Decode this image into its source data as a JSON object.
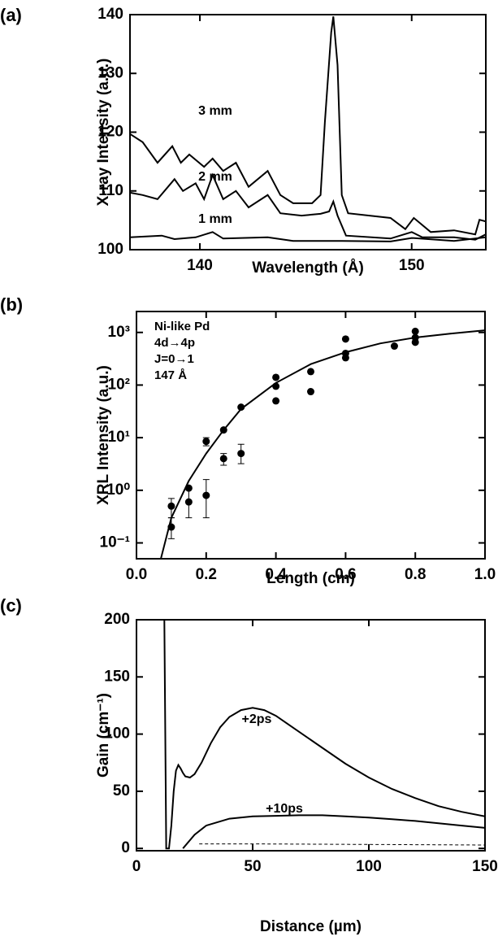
{
  "chart_data": [
    {
      "type": "line",
      "panel_label": "(a)",
      "xlabel": "Wavelength  (Å)",
      "ylabel": "X-ray Intensity (a.u.)",
      "xlim": [
        136.7,
        153.5
      ],
      "ylim": [
        100,
        140
      ],
      "xticks": [
        140,
        150
      ],
      "yticks": [
        100,
        110,
        120,
        130,
        140
      ],
      "series": [
        {
          "name": "3 mm",
          "color": "#000000",
          "x": [
            136.7,
            137.3,
            138.0,
            138.7,
            139.1,
            139.5,
            140.2,
            140.6,
            141.1,
            141.7,
            142.3,
            143.2,
            143.8,
            144.4,
            145.3,
            145.7,
            145.9,
            146.2,
            146.3,
            146.5,
            146.7,
            147.0,
            149.0,
            149.7,
            150.1,
            150.9,
            152.0,
            153.0,
            153.2,
            153.5
          ],
          "values": [
            119.7,
            118.3,
            114.8,
            117.6,
            114.8,
            116.2,
            114.1,
            115.5,
            113.4,
            114.8,
            110.7,
            113.4,
            109.3,
            107.9,
            107.9,
            109.3,
            121.7,
            137.0,
            139.7,
            131.4,
            109.3,
            106.2,
            105.4,
            103.5,
            105.4,
            103.0,
            103.3,
            102.6,
            105.1,
            104.8
          ]
        },
        {
          "name": "2 mm",
          "color": "#000000",
          "x": [
            136.7,
            137.3,
            138.0,
            138.8,
            139.2,
            139.8,
            140.2,
            140.6,
            141.1,
            141.7,
            142.3,
            143.2,
            143.8,
            144.8,
            145.7,
            146.1,
            146.3,
            146.5,
            146.9,
            149.0,
            150.0,
            150.5,
            152.0,
            153.0,
            153.5
          ],
          "values": [
            109.7,
            109.3,
            108.6,
            112.0,
            110.0,
            111.3,
            108.6,
            112.7,
            108.6,
            110.0,
            107.2,
            109.3,
            106.2,
            105.8,
            106.1,
            106.5,
            108.2,
            105.8,
            102.4,
            101.9,
            103.0,
            102.1,
            102.1,
            101.7,
            102.6
          ]
        },
        {
          "name": "1 mm",
          "color": "#000000",
          "x": [
            136.7,
            138.2,
            138.8,
            139.8,
            140.6,
            141.1,
            143.2,
            144.4,
            146.7,
            149.0,
            150.0,
            152.0,
            153.5
          ],
          "values": [
            102.1,
            102.4,
            101.8,
            102.1,
            103.0,
            101.9,
            102.1,
            101.5,
            101.5,
            101.4,
            102.0,
            101.5,
            102.1
          ]
        }
      ]
    },
    {
      "type": "scatter",
      "panel_label": "(b)",
      "xlabel": "Length (cm)",
      "ylabel": "XRL Intensity (a.u.)",
      "annotations": [
        "Ni-like  Pd",
        "4d→4p",
        "J=0→1",
        "147  Å"
      ],
      "log_y": true,
      "xlim": [
        0,
        1
      ],
      "ylim": [
        0.05,
        2500
      ],
      "xticks": [
        {
          "value": 0,
          "label": "0.0"
        },
        0.2,
        0.4,
        0.6,
        0.8,
        {
          "value": 1,
          "label": "1.0"
        }
      ],
      "yticks": [
        {
          "value": 0.1,
          "label": "10⁻¹"
        },
        {
          "value": 1,
          "label": "10⁰"
        },
        {
          "value": 10,
          "label": "10¹"
        },
        {
          "value": 100,
          "label": "10²"
        },
        {
          "value": 1000,
          "label": "10³"
        }
      ],
      "color": "#000000",
      "x": [
        0.1,
        0.1,
        0.15,
        0.15,
        0.2,
        0.2,
        0.25,
        0.25,
        0.3,
        0.3,
        0.4,
        0.4,
        0.4,
        0.5,
        0.5,
        0.6,
        0.6,
        0.6,
        0.74,
        0.8,
        0.8,
        0.8
      ],
      "values": [
        0.5,
        0.2,
        1.1,
        0.6,
        8.5,
        0.8,
        14,
        4,
        38,
        5,
        140,
        95,
        50,
        180,
        75,
        750,
        400,
        330,
        550,
        1050,
        800,
        650
      ],
      "lower": [
        0.3,
        0.12,
        null,
        0.3,
        7,
        0.3,
        null,
        3,
        null,
        3.2,
        null,
        null,
        null,
        null,
        null,
        null,
        null,
        null,
        null,
        null,
        null,
        null
      ],
      "upper": [
        0.7,
        0.3,
        null,
        1.1,
        10,
        1.6,
        null,
        5,
        null,
        7.5,
        null,
        null,
        null,
        null,
        null,
        null,
        null,
        null,
        null,
        null,
        null,
        null
      ],
      "fit": {
        "x": [
          0.07,
          0.1,
          0.15,
          0.2,
          0.25,
          0.3,
          0.4,
          0.5,
          0.6,
          0.7,
          0.8,
          0.9,
          1.0
        ],
        "values": [
          0.05,
          0.3,
          1.5,
          5,
          14,
          35,
          110,
          250,
          420,
          620,
          800,
          950,
          1100
        ]
      }
    },
    {
      "type": "line",
      "panel_label": "(c)",
      "xlabel": "Distance (µm)",
      "ylabel": "Gain (cm⁻¹)",
      "xlim": [
        0,
        150
      ],
      "ylim": [
        -2,
        200
      ],
      "xticks": [
        0,
        50,
        100,
        150
      ],
      "yticks": [
        0,
        50,
        100,
        150,
        200
      ],
      "series": [
        {
          "name": "+2ps",
          "color": "#000000",
          "x": [
            12,
            12.8,
            14,
            15,
            16,
            17,
            18,
            19,
            20,
            21,
            23,
            25,
            28,
            32,
            36,
            40,
            45,
            50,
            55,
            60,
            70,
            80,
            90,
            100,
            110,
            120,
            130,
            140,
            150
          ],
          "values": [
            200,
            0,
            0,
            20,
            50,
            68,
            73,
            70,
            66,
            63,
            62,
            65,
            75,
            92,
            106,
            115,
            121,
            123,
            121,
            116,
            102,
            88,
            74,
            62,
            52,
            44,
            37,
            32,
            28
          ]
        },
        {
          "name": "+10ps",
          "color": "#000000",
          "x": [
            20,
            25,
            30,
            40,
            50,
            60,
            70,
            80,
            90,
            100,
            110,
            120,
            130,
            140,
            150
          ],
          "values": [
            0,
            12,
            20,
            26,
            28,
            28.5,
            29,
            29,
            28,
            27,
            25.5,
            24,
            22,
            20,
            18
          ]
        },
        {
          "color": "#000000",
          "dashed": true,
          "x": [
            27,
            50,
            100,
            150
          ],
          "values": [
            4,
            4,
            3.5,
            3
          ]
        }
      ]
    }
  ]
}
